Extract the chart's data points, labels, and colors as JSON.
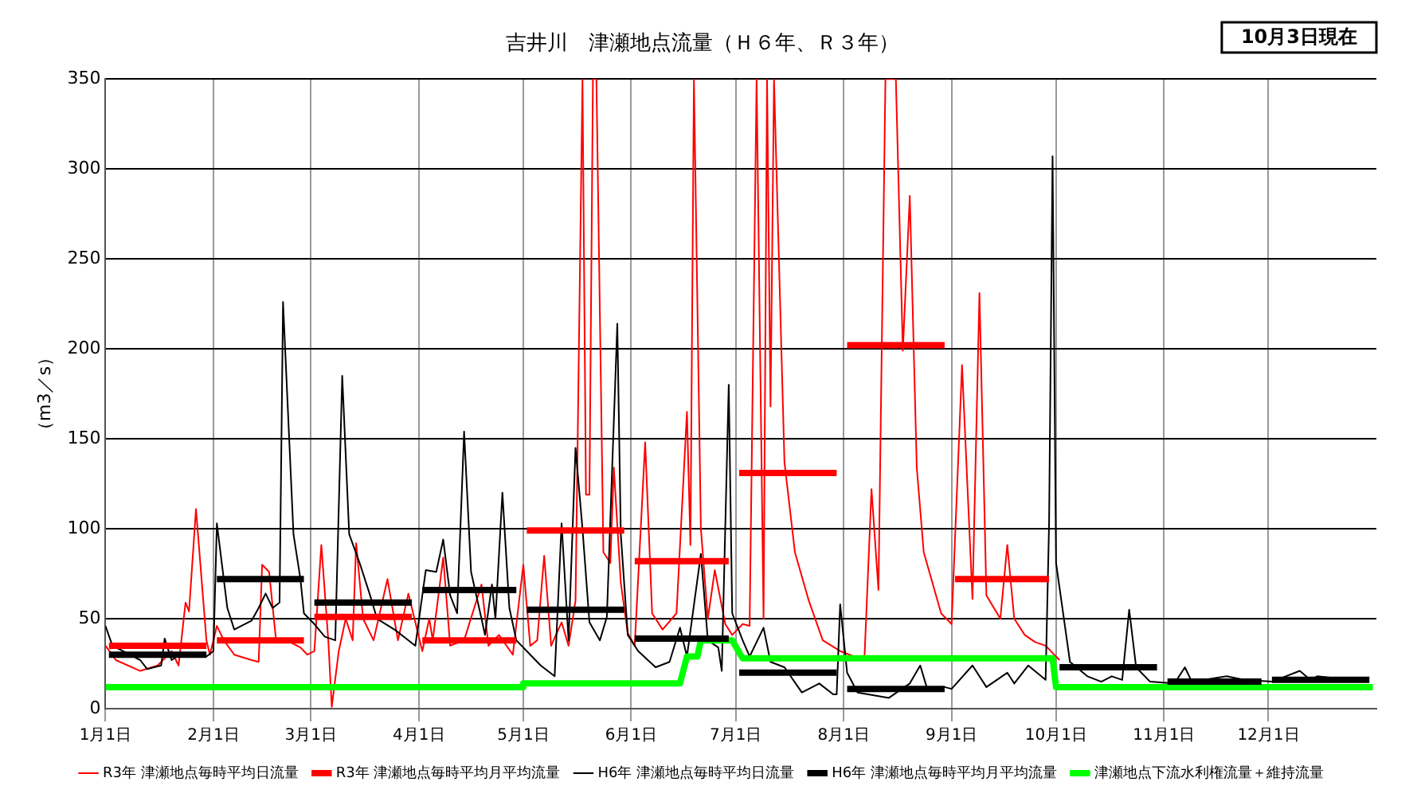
{
  "chart_data": {
    "type": "line",
    "title": "吉井川　津瀬地点流量（Ｈ６年、Ｒ３年）",
    "ylabel": "（m3／s）",
    "annotations": [
      "10月3日現在"
    ],
    "xlim": [
      "--01-01",
      "--12-31"
    ],
    "xticks": [
      {
        "value": "--01-01",
        "label": "1月1日"
      },
      {
        "value": "--02-01",
        "label": "2月1日"
      },
      {
        "value": "--03-01",
        "label": "3月1日"
      },
      {
        "value": "--04-01",
        "label": "4月1日"
      },
      {
        "value": "--05-01",
        "label": "5月1日"
      },
      {
        "value": "--06-01",
        "label": "6月1日"
      },
      {
        "value": "--07-01",
        "label": "7月1日"
      },
      {
        "value": "--08-01",
        "label": "8月1日"
      },
      {
        "value": "--09-01",
        "label": "9月1日"
      },
      {
        "value": "--10-01",
        "label": "10月1日"
      },
      {
        "value": "--11-01",
        "label": "11月1日"
      },
      {
        "value": "--12-01",
        "label": "12月1日"
      }
    ],
    "ylim": [
      0,
      350
    ],
    "yticks": [
      0,
      50,
      100,
      150,
      200,
      250,
      300,
      350
    ],
    "grid": true,
    "legend": "bottom",
    "series": [
      {
        "name": "R3年 津瀬地点毎時平均日流量",
        "color": "#ff0000",
        "x": [
          "--01-01",
          "--01-04",
          "--01-11",
          "--01-16",
          "--01-20",
          "--01-22",
          "--01-24",
          "--01-25",
          "--01-27",
          "--01-30",
          "--01-31",
          "--02-02",
          "--02-04",
          "--02-07",
          "--02-12",
          "--02-14",
          "--02-15",
          "--02-17",
          "--02-19",
          "--02-22",
          "--02-26",
          "--02-28",
          "--03-02",
          "--03-04",
          "--03-06",
          "--03-07",
          "--03-09",
          "--03-11",
          "--03-13",
          "--03-14",
          "--03-16",
          "--03-19",
          "--03-23",
          "--03-26",
          "--03-29",
          "--04-02",
          "--04-04",
          "--04-05",
          "--04-08",
          "--04-10",
          "--04-14",
          "--04-19",
          "--04-21",
          "--04-24",
          "--04-28",
          "--05-01",
          "--05-03",
          "--05-05",
          "--05-07",
          "--05-09",
          "--05-12",
          "--05-14",
          "--05-16",
          "--05-18",
          "--05-19",
          "--05-20",
          "--05-21",
          "--05-22",
          "--05-24",
          "--05-26",
          "--05-27",
          "--05-29",
          "--05-31",
          "--06-02",
          "--06-05",
          "--06-07",
          "--06-10",
          "--06-14",
          "--06-17",
          "--06-18",
          "--06-19",
          "--06-21",
          "--06-23",
          "--06-25",
          "--06-28",
          "--06-30",
          "--07-03",
          "--07-05",
          "--07-07",
          "--07-09",
          "--07-10",
          "--07-11",
          "--07-12",
          "--07-15",
          "--07-18",
          "--07-22",
          "--07-26",
          "--07-31",
          "--08-04",
          "--08-07",
          "--08-09",
          "--08-11",
          "--08-13",
          "--08-16",
          "--08-18",
          "--08-20",
          "--08-22",
          "--08-24",
          "--08-29",
          "--09-01",
          "--09-04",
          "--09-07",
          "--09-09",
          "--09-11",
          "--09-15",
          "--09-17",
          "--09-19",
          "--09-22",
          "--09-25",
          "--09-28",
          "--10-02"
        ],
        "values": [
          35,
          27,
          21,
          24,
          32,
          24,
          59,
          54,
          111,
          38,
          30,
          46,
          38,
          30,
          27,
          26,
          80,
          76,
          38,
          38,
          34,
          30,
          32,
          91,
          38,
          1,
          32,
          50,
          38,
          92,
          50,
          38,
          72,
          38,
          64,
          32,
          50,
          38,
          84,
          35,
          38,
          69,
          35,
          41,
          30,
          80,
          35,
          38,
          85,
          35,
          48,
          35,
          60,
          350,
          119,
          119,
          350,
          350,
          87,
          81,
          134,
          70,
          42,
          35,
          148,
          53,
          44,
          53,
          165,
          91,
          350,
          100,
          50,
          77,
          47,
          41,
          47,
          46,
          350,
          50,
          350,
          168,
          350,
          137,
          87,
          60,
          38,
          32,
          29,
          29,
          122,
          66,
          350,
          350,
          199,
          285,
          134,
          87,
          53,
          47,
          191,
          61,
          231,
          63,
          50,
          91,
          50,
          41,
          37,
          35,
          27
        ]
      },
      {
        "name": "R3年 津瀬地点毎時平均月平均流量",
        "color": "#ff0000",
        "x": [
          "--01-02",
          "--01-30",
          "--01-31",
          "--02-02",
          "--02-27",
          "--02-28",
          "--03-02",
          "--03-30",
          "--03-31",
          "--04-02",
          "--04-29",
          "--04-30",
          "--05-02",
          "--05-30",
          "--05-31",
          "--06-02",
          "--06-29",
          "--06-30",
          "--07-02",
          "--07-30",
          "--07-31",
          "--08-02",
          "--08-30",
          "--08-31",
          "--09-02",
          "--09-29"
        ],
        "values": [
          35,
          35,
          null,
          38,
          38,
          null,
          51,
          51,
          null,
          38,
          38,
          null,
          99,
          99,
          null,
          82,
          82,
          null,
          131,
          131,
          null,
          202,
          202,
          null,
          72,
          72
        ]
      },
      {
        "name": "H6年 津瀬地点毎時平均日流量",
        "color": "#000000",
        "x": [
          "--01-01",
          "--01-03",
          "--01-06",
          "--01-11",
          "--01-13",
          "--01-17",
          "--01-18",
          "--01-20",
          "--01-23",
          "--01-30",
          "--02-01",
          "--02-02",
          "--02-05",
          "--02-07",
          "--02-12",
          "--02-14",
          "--02-16",
          "--02-18",
          "--02-20",
          "--02-21",
          "--02-24",
          "--02-26",
          "--02-27",
          "--03-02",
          "--03-05",
          "--03-08",
          "--03-10",
          "--03-12",
          "--03-15",
          "--03-18",
          "--03-20",
          "--03-25",
          "--03-31",
          "--04-03",
          "--04-06",
          "--04-08",
          "--04-10",
          "--04-12",
          "--04-14",
          "--04-16",
          "--04-19",
          "--04-20",
          "--04-22",
          "--04-23",
          "--04-25",
          "--04-27",
          "--04-29",
          "--05-03",
          "--05-06",
          "--05-10",
          "--05-12",
          "--05-14",
          "--05-16",
          "--05-18",
          "--05-20",
          "--05-23",
          "--05-25",
          "--05-28",
          "--05-29",
          "--05-31",
          "--06-03",
          "--06-08",
          "--06-12",
          "--06-15",
          "--06-17",
          "--06-21",
          "--06-23",
          "--06-26",
          "--06-27",
          "--06-29",
          "--06-30",
          "--07-03",
          "--07-05",
          "--07-09",
          "--07-11",
          "--07-15",
          "--07-20",
          "--07-25",
          "--07-29",
          "--07-30",
          "--07-31",
          "--08-02",
          "--08-05",
          "--08-14",
          "--08-20",
          "--08-23",
          "--08-25",
          "--08-30",
          "--09-01",
          "--09-07",
          "--09-11",
          "--09-17",
          "--09-19",
          "--09-23",
          "--09-28",
          "--09-29",
          "--09-30",
          "--10-01",
          "--10-05",
          "--10-10",
          "--10-14",
          "--10-17",
          "--10-20",
          "--10-22",
          "--10-24",
          "--10-28",
          "--11-04",
          "--11-07",
          "--11-09",
          "--11-19",
          "--11-24",
          "--12-02",
          "--12-10",
          "--12-13",
          "--12-15",
          "--12-29"
        ],
        "values": [
          46,
          35,
          32,
          27,
          22,
          24,
          39,
          27,
          31,
          29,
          32,
          103,
          56,
          44,
          49,
          56,
          64,
          56,
          59,
          226,
          97,
          72,
          53,
          47,
          40,
          38,
          185,
          97,
          81,
          63,
          50,
          44,
          35,
          77,
          76,
          94,
          63,
          53,
          154,
          76,
          50,
          41,
          69,
          50,
          120,
          56,
          38,
          30,
          24,
          18,
          103,
          38,
          145,
          100,
          48,
          38,
          51,
          214,
          97,
          41,
          32,
          23,
          26,
          45,
          29,
          86,
          38,
          34,
          21,
          180,
          53,
          38,
          29,
          45,
          26,
          23,
          9,
          14,
          8,
          8,
          58,
          20,
          9,
          6,
          14,
          24,
          11,
          12,
          11,
          24,
          12,
          20,
          14,
          24,
          16,
          103,
          307,
          81,
          26,
          18,
          15,
          18,
          16,
          55,
          23,
          15,
          14,
          23,
          15,
          18,
          16,
          15,
          21,
          16,
          18,
          15
        ]
      },
      {
        "name": "H6年 津瀬地点毎時平均月平均流量",
        "color": "#000000",
        "x": [
          "--01-02",
          "--01-30",
          "--01-31",
          "--02-02",
          "--02-27",
          "--02-28",
          "--03-02",
          "--03-30",
          "--03-31",
          "--04-02",
          "--04-29",
          "--04-30",
          "--05-02",
          "--05-30",
          "--05-31",
          "--06-02",
          "--06-29",
          "--06-30",
          "--07-02",
          "--07-30",
          "--07-31",
          "--08-02",
          "--08-30",
          "--08-31",
          "--10-02",
          "--10-30",
          "--10-31",
          "--11-02",
          "--11-29",
          "--11-30",
          "--12-02",
          "--12-30"
        ],
        "values": [
          30,
          30,
          null,
          72,
          72,
          null,
          59,
          59,
          null,
          66,
          66,
          null,
          55,
          55,
          null,
          39,
          39,
          null,
          20,
          20,
          null,
          11,
          11,
          null,
          23,
          23,
          null,
          15,
          15,
          null,
          16,
          16
        ]
      },
      {
        "name": "津瀬地点下流水利権流量＋維持流量",
        "color": "#00ff00",
        "x": [
          "--01-01",
          "--05-01",
          "--05-01",
          "--06-15",
          "--06-17",
          "--06-20",
          "--06-21",
          "--06-30",
          "--07-03",
          "--09-30",
          "--10-01",
          "--12-31"
        ],
        "values": [
          12,
          12,
          14,
          14,
          29,
          29,
          38,
          38,
          28,
          28,
          12,
          12
        ]
      }
    ]
  }
}
